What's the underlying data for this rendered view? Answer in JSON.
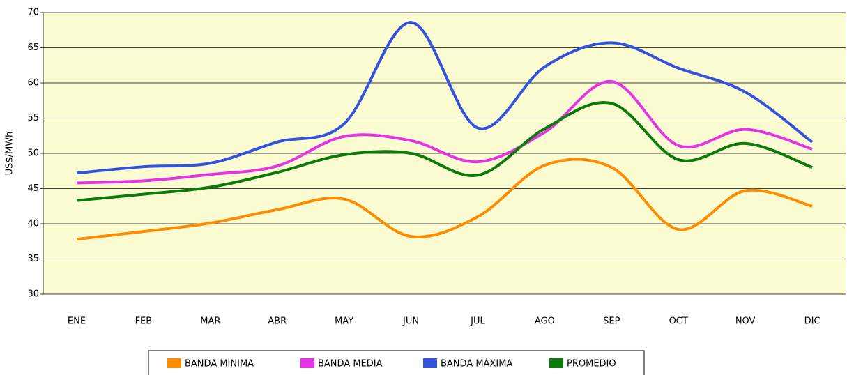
{
  "chart_data": {
    "type": "line",
    "y_label": "US$/MWh",
    "categories": [
      "ENE",
      "FEB",
      "MAR",
      "ABR",
      "MAY",
      "JUN",
      "JUL",
      "AGO",
      "SEP",
      "OCT",
      "NOV",
      "DIC"
    ],
    "series": [
      {
        "name": "BANDA MÍNIMA",
        "color": "#ff8c00",
        "values": [
          37.8,
          38.9,
          40.1,
          42.0,
          43.5,
          38.2,
          41.0,
          48.3,
          48.0,
          39.2,
          44.7,
          42.5
        ]
      },
      {
        "name": "BANDA MEDIA",
        "color": "#e633e6",
        "values": [
          45.8,
          46.1,
          47.0,
          48.2,
          52.4,
          51.8,
          48.8,
          53.0,
          60.2,
          51.1,
          53.4,
          50.6
        ]
      },
      {
        "name": "BANDA MÁXIMA",
        "color": "#3352e0",
        "values": [
          47.2,
          48.1,
          48.6,
          51.6,
          54.2,
          68.6,
          53.6,
          62.3,
          65.7,
          62.1,
          58.7,
          51.6
        ]
      },
      {
        "name": "PROMEDIO",
        "color": "#0a7a0a",
        "values": [
          43.3,
          44.2,
          45.2,
          47.3,
          49.8,
          50.0,
          46.9,
          53.5,
          57.1,
          49.1,
          51.4,
          48.0
        ]
      }
    ],
    "ylim": [
      30,
      70
    ],
    "yticks": [
      30,
      35,
      40,
      45,
      50,
      55,
      60,
      65,
      70
    ],
    "grid": true,
    "legend": "bottom"
  }
}
